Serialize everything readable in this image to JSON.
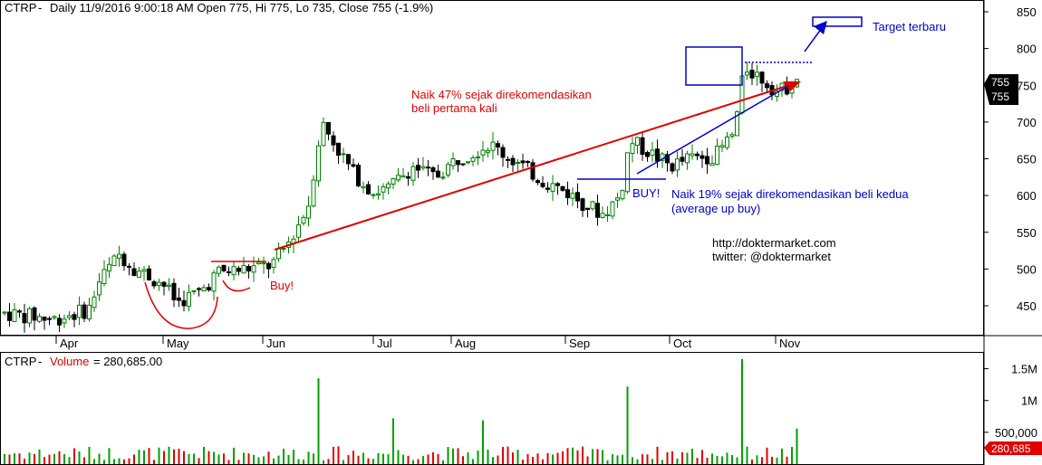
{
  "header": {
    "symbol": "CTRP",
    "info": "Daily 11/9/2016 9:00:18 AM Open 775, Hi 775, Lo 735, Close 755 (-1.9%)",
    "volume_label": "Volume",
    "volume_info": "= 280,685.00"
  },
  "price_axis": {
    "ticks": [
      450,
      500,
      550,
      600,
      650,
      700,
      750,
      800,
      850
    ],
    "last_close": "755",
    "last_close_marker": "755"
  },
  "volume_axis": {
    "ticks": [
      "500,000",
      "1M",
      "1.5M"
    ],
    "tick_values": [
      500000,
      1000000,
      1500000
    ],
    "last_volume": "280,685"
  },
  "months": [
    "Apr",
    "May",
    "Jun",
    "Jul",
    "Aug",
    "Sep",
    "Oct",
    "Nov"
  ],
  "annotations": {
    "naik47_line1": "Naik 47% sejak direkomendasikan",
    "naik47_line2": "beli pertama kali",
    "buy1": "Buy!",
    "buy2": "BUY!",
    "naik19_line1": "Naik 19% sejak direkomendasikan beli kedua",
    "naik19_line2": "(average up buy)",
    "target": "Target terbaru",
    "site": "http://doktermarket.com",
    "twitter": "twitter: @doktermarket"
  },
  "colors": {
    "up": "#008000",
    "down": "#000000",
    "red": "#e00000",
    "blue": "#0000cc",
    "volume_up": "#00a000",
    "volume_down": "#e00000"
  },
  "chart_data": {
    "type": "candlestick",
    "ylim": [
      410,
      860
    ],
    "volume_ylim": [
      0,
      1750000
    ],
    "key_points": [
      {
        "x": "Apr",
        "close": 440
      },
      {
        "x": "May (mid)",
        "low": 425
      },
      {
        "x": "Jun (start)",
        "close": 510
      },
      {
        "x": "Jun (mid)",
        "high": 730
      },
      {
        "x": "Jul",
        "close": 620
      },
      {
        "x": "Aug",
        "close": 665
      },
      {
        "x": "Sep",
        "low": 550
      },
      {
        "x": "Sep (late)",
        "high": 690
      },
      {
        "x": "Oct",
        "close": 640
      },
      {
        "x": "Oct (late)",
        "high": 810
      },
      {
        "x": "Nov",
        "close": 755
      }
    ],
    "last_bar": {
      "open": 775,
      "high": 775,
      "low": 735,
      "close": 755,
      "change_pct": -1.9,
      "volume": 280685
    }
  }
}
